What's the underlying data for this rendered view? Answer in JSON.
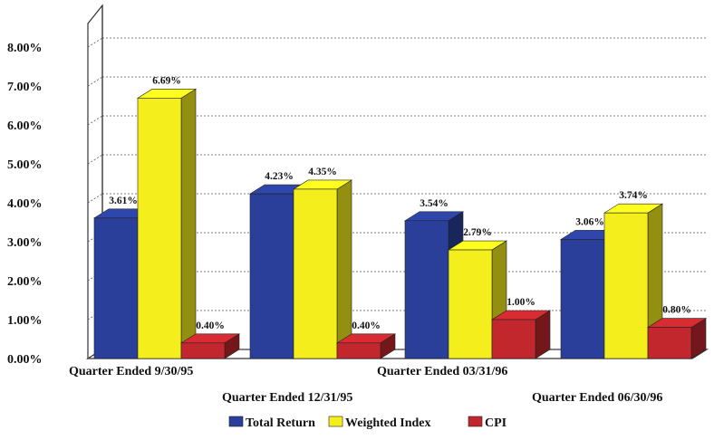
{
  "chart_data": {
    "type": "bar",
    "title": "",
    "xlabel": "",
    "ylabel": "",
    "ylim": [
      0,
      8
    ],
    "yticks": [
      "0.00%",
      "1.00%",
      "2.00%",
      "3.00%",
      "4.00%",
      "5.00%",
      "6.00%",
      "7.00%",
      "8.00%"
    ],
    "grid": true,
    "legend_position": "bottom",
    "categories": [
      "Quarter Ended 9/30/95",
      "Quarter Ended 12/31/95",
      "Quarter Ended 03/31/96",
      "Quarter Ended 06/30/96"
    ],
    "series": [
      {
        "name": "Total Return",
        "color": "#2a3f9a",
        "values": [
          3.61,
          4.23,
          3.54,
          3.06
        ],
        "labels": [
          "3.61%",
          "4.23%",
          "3.54%",
          "3.06%"
        ]
      },
      {
        "name": "Weighted Index",
        "color": "#f4ef1c",
        "values": [
          6.69,
          4.35,
          2.79,
          3.74
        ],
        "labels": [
          "6.69%",
          "4.35%",
          "2.79%",
          "3.74%"
        ]
      },
      {
        "name": "CPI",
        "color": "#c1272d",
        "values": [
          0.4,
          0.4,
          1.0,
          0.8
        ],
        "labels": [
          "0.40%",
          "0.40%",
          "1.00%",
          "0.80%"
        ]
      }
    ]
  }
}
